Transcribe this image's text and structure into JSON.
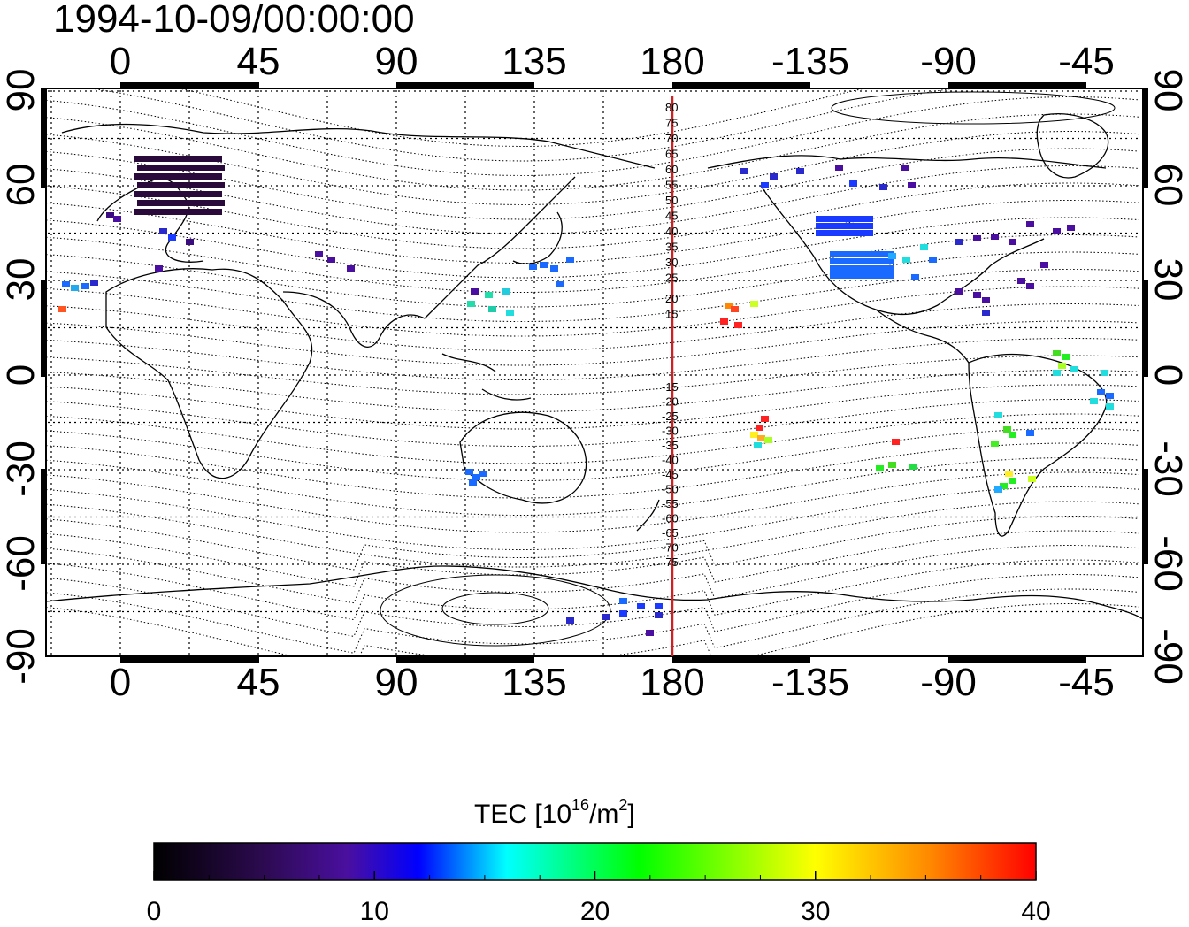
{
  "title": "1994-10-09/00:00:00",
  "lon_ticks": [
    "0",
    "45",
    "90",
    "135",
    "180",
    "-135",
    "-90",
    "-45"
  ],
  "lat_ticks": [
    "90",
    "60",
    "30",
    "0",
    "-30",
    "-60",
    "-90"
  ],
  "contour_labels_north": [
    "80",
    "75",
    "70",
    "65",
    "60",
    "55",
    "50",
    "45",
    "40",
    "35",
    "30",
    "25",
    "20",
    "15"
  ],
  "contour_labels_south": [
    "-15",
    "-20",
    "-25",
    "-30",
    "-35",
    "-40",
    "-45",
    "-50",
    "-55",
    "-60",
    "-65",
    "-70",
    "-75"
  ],
  "colorbar": {
    "title_prefix": "TEC  [10",
    "title_sup1": "16",
    "title_mid": "/m",
    "title_sup2": "2",
    "title_suffix": "]",
    "ticks": [
      "0",
      "10",
      "20",
      "30",
      "40"
    ],
    "range": [
      0,
      40
    ],
    "stops": [
      "#000000",
      "#2b0a4d",
      "#4a0fa0",
      "#0000ff",
      "#00ffff",
      "#00ff00",
      "#ffff00",
      "#ff0000"
    ]
  },
  "meridian_color": "#cc2222"
}
